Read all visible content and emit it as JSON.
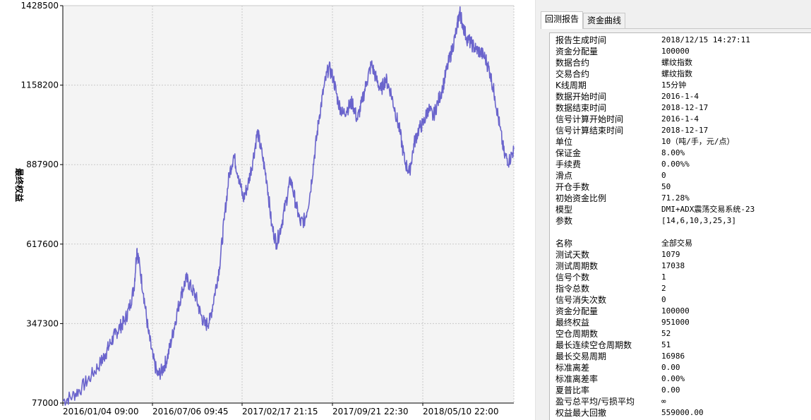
{
  "colors": {
    "line": "#6a64cc",
    "grid": "#c9c9c9",
    "plot_bg": "#f4f4f4"
  },
  "chart_data": {
    "type": "line",
    "ylabel": "最终权益",
    "ylim": [
      77000,
      1428500
    ],
    "yticks": [
      "1428500",
      "1158200",
      "887900",
      "617600",
      "347300",
      "77000"
    ],
    "xticks": [
      "2016/01/04 09:00",
      "2016/07/06 09:45",
      "2017/02/17 21:15",
      "2017/09/21 22:30",
      "2018/05/10 22:00"
    ],
    "series": [
      {
        "points": [
          [
            0,
            85000
          ],
          [
            2,
            100000
          ],
          [
            4,
            130000
          ],
          [
            6,
            170000
          ],
          [
            8,
            215000
          ],
          [
            9,
            245000
          ],
          [
            10,
            280000
          ],
          [
            11,
            310000
          ],
          [
            12,
            335000
          ],
          [
            13,
            355000
          ],
          [
            14,
            400000
          ],
          [
            15,
            470000
          ],
          [
            15.6,
            600000
          ],
          [
            16,
            560000
          ],
          [
            17,
            450000
          ],
          [
            18,
            320000
          ],
          [
            19,
            230000
          ],
          [
            20,
            170000
          ],
          [
            21,
            190000
          ],
          [
            22,
            230000
          ],
          [
            23,
            300000
          ],
          [
            24,
            380000
          ],
          [
            25,
            450000
          ],
          [
            26,
            500000
          ],
          [
            27,
            470000
          ],
          [
            28,
            440000
          ],
          [
            29,
            380000
          ],
          [
            30,
            340000
          ],
          [
            31,
            360000
          ],
          [
            32,
            450000
          ],
          [
            33,
            540000
          ],
          [
            34,
            700000
          ],
          [
            35,
            850000
          ],
          [
            36,
            920000
          ],
          [
            37,
            850000
          ],
          [
            38,
            770000
          ],
          [
            39,
            820000
          ],
          [
            40,
            900000
          ],
          [
            41,
            1000000
          ],
          [
            42,
            920000
          ],
          [
            43,
            830000
          ],
          [
            44,
            680000
          ],
          [
            45,
            620000
          ],
          [
            46,
            680000
          ],
          [
            47,
            760000
          ],
          [
            48,
            840000
          ],
          [
            49,
            760000
          ],
          [
            50,
            690000
          ],
          [
            51,
            700000
          ],
          [
            52,
            780000
          ],
          [
            53,
            920000
          ],
          [
            54,
            1050000
          ],
          [
            55,
            1150000
          ],
          [
            56,
            1220000
          ],
          [
            57,
            1180000
          ],
          [
            58,
            1100000
          ],
          [
            59,
            1060000
          ],
          [
            60,
            1080000
          ],
          [
            61,
            1100000
          ],
          [
            62,
            1040000
          ],
          [
            63,
            1100000
          ],
          [
            64,
            1170000
          ],
          [
            65,
            1230000
          ],
          [
            66,
            1180000
          ],
          [
            67,
            1140000
          ],
          [
            68,
            1180000
          ],
          [
            69,
            1140000
          ],
          [
            70,
            1070000
          ],
          [
            71,
            1000000
          ],
          [
            72,
            900000
          ],
          [
            73,
            860000
          ],
          [
            74,
            960000
          ],
          [
            75,
            1010000
          ],
          [
            76,
            1030000
          ],
          [
            77,
            1080000
          ],
          [
            78,
            1050000
          ],
          [
            79,
            1100000
          ],
          [
            80,
            1150000
          ],
          [
            81,
            1220000
          ],
          [
            82,
            1280000
          ],
          [
            83,
            1350000
          ],
          [
            83.6,
            1410000
          ],
          [
            84,
            1380000
          ],
          [
            85,
            1320000
          ],
          [
            86,
            1300000
          ],
          [
            87,
            1280000
          ],
          [
            88,
            1270000
          ],
          [
            89,
            1250000
          ],
          [
            90,
            1200000
          ],
          [
            91,
            1120000
          ],
          [
            92,
            1020000
          ],
          [
            93,
            920000
          ],
          [
            94,
            900000
          ],
          [
            95,
            940000
          ]
        ]
      }
    ]
  },
  "report": {
    "tabs": [
      {
        "label": "回测报告",
        "active": true
      },
      {
        "label": "资金曲线",
        "active": false
      }
    ],
    "rows": [
      {
        "key": "报告生成时间",
        "value": "2018/12/15 14:27:11"
      },
      {
        "key": "资金分配量",
        "value": "100000"
      },
      {
        "key": "数据合约",
        "value": "螺纹指数"
      },
      {
        "key": "交易合约",
        "value": "螺纹指数"
      },
      {
        "key": "K线周期",
        "value": "15分钟"
      },
      {
        "key": "数据开始时间",
        "value": "2016-1-4"
      },
      {
        "key": "数据结束时间",
        "value": "2018-12-17"
      },
      {
        "key": "信号计算开始时间",
        "value": "2016-1-4"
      },
      {
        "key": "信号计算结束时间",
        "value": "2018-12-17"
      },
      {
        "key": "单位",
        "value": "10（吨/手，元/点）"
      },
      {
        "key": "保证金",
        "value": "8.00%"
      },
      {
        "key": "手续费",
        "value": "0.00%%"
      },
      {
        "key": "滑点",
        "value": "0"
      },
      {
        "key": "开仓手数",
        "value": "50"
      },
      {
        "key": "初始资金比例",
        "value": "71.28%"
      },
      {
        "key": "模型",
        "value": "DMI+ADX震荡交易系统-23"
      },
      {
        "key": "参数",
        "value": "[14,6,10,3,25,3]"
      },
      {
        "key": "",
        "value": ""
      },
      {
        "key": "名称",
        "value": "全部交易"
      },
      {
        "key": "测试天数",
        "value": "1079"
      },
      {
        "key": "测试周期数",
        "value": "17038"
      },
      {
        "key": "信号个数",
        "value": "1"
      },
      {
        "key": "指令总数",
        "value": "2"
      },
      {
        "key": "信号消失次数",
        "value": "0"
      },
      {
        "key": "资金分配量",
        "value": "100000"
      },
      {
        "key": "最终权益",
        "value": "951000"
      },
      {
        "key": "空仓周期数",
        "value": "52"
      },
      {
        "key": "最长连续空仓周期数",
        "value": "51"
      },
      {
        "key": "最长交易周期",
        "value": "16986"
      },
      {
        "key": "标准离差",
        "value": "0.00"
      },
      {
        "key": "标准离差率",
        "value": "0.00%"
      },
      {
        "key": "夏普比率",
        "value": "0.00"
      },
      {
        "key": "盈亏总平均/亏损平均",
        "value": "∞"
      },
      {
        "key": "权益最大回撤",
        "value": "559000.00"
      }
    ]
  }
}
